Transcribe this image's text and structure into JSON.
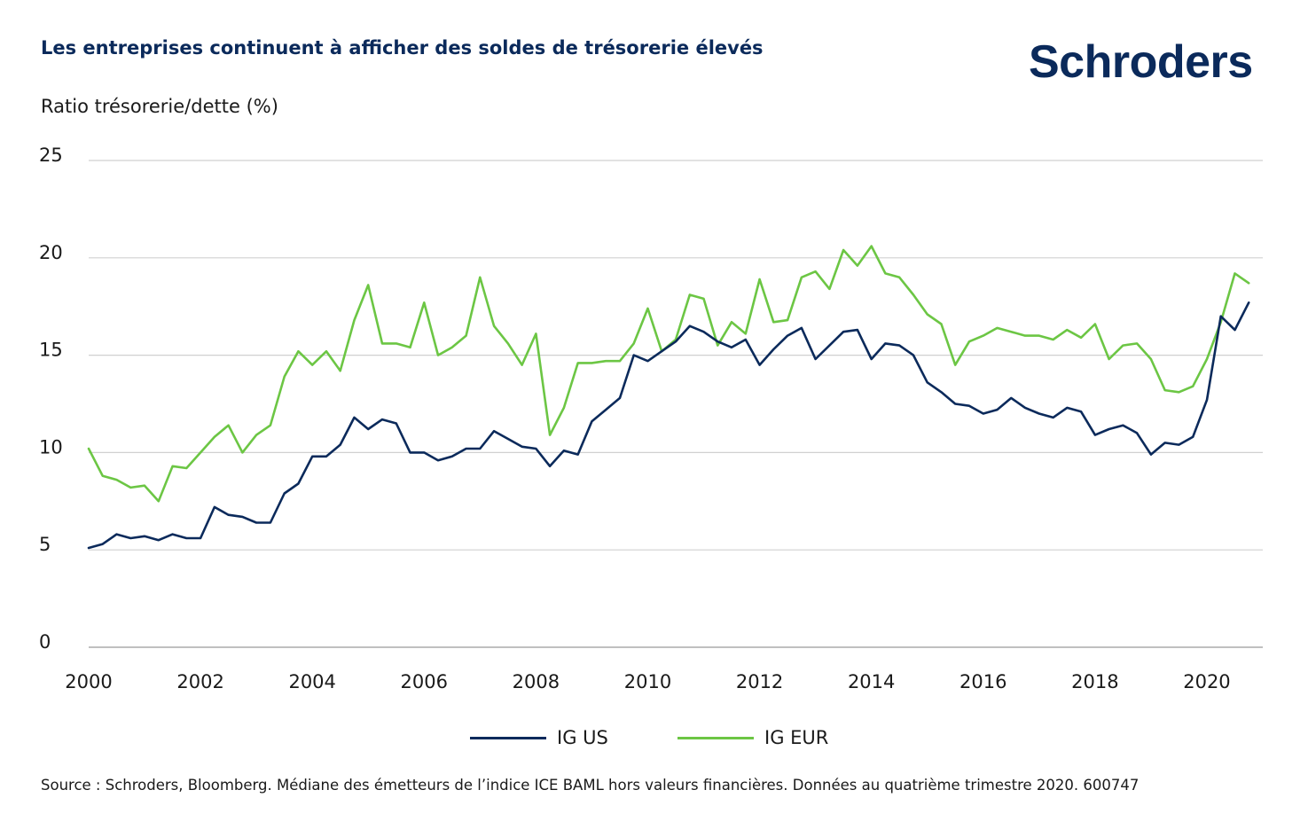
{
  "header": {
    "title": "Les entreprises continuent à afficher des soldes de trésorerie élevés",
    "logo_text": "Schroders"
  },
  "footer": {
    "source": "Source : Schroders, Bloomberg. Médiane des émetteurs de l’indice ICE BAML hors valeurs financières. Données au quatrième trimestre 2020. 600747"
  },
  "colors": {
    "ig_us": "#0b2a5b",
    "ig_eur": "#6cc644",
    "grid": "#d0d0d0",
    "title": "#0b2a5b"
  },
  "chart_data": {
    "type": "line",
    "title": "Les entreprises continuent à afficher des soldes de trésorerie élevés",
    "ylabel": "Ratio trésorerie/dette (%)",
    "xlabel": "",
    "xlim": [
      2000,
      2021
    ],
    "ylim": [
      0,
      25
    ],
    "x_ticks": [
      2000,
      2002,
      2004,
      2006,
      2008,
      2010,
      2012,
      2014,
      2016,
      2018,
      2020
    ],
    "y_ticks": [
      0,
      5,
      10,
      15,
      20,
      25
    ],
    "grid": "horizontal",
    "legend_position": "bottom-center",
    "series": [
      {
        "name": "IG US",
        "color": "#0b2a5b",
        "points": [
          [
            2000.0,
            5.1
          ],
          [
            2000.25,
            5.3
          ],
          [
            2000.5,
            5.8
          ],
          [
            2000.75,
            5.6
          ],
          [
            2001.0,
            5.7
          ],
          [
            2001.25,
            5.5
          ],
          [
            2001.5,
            5.8
          ],
          [
            2001.75,
            5.6
          ],
          [
            2002.0,
            5.6
          ],
          [
            2002.25,
            7.2
          ],
          [
            2002.5,
            6.8
          ],
          [
            2002.75,
            6.7
          ],
          [
            2003.0,
            6.4
          ],
          [
            2003.25,
            6.4
          ],
          [
            2003.5,
            7.9
          ],
          [
            2003.75,
            8.4
          ],
          [
            2004.0,
            9.8
          ],
          [
            2004.25,
            9.8
          ],
          [
            2004.5,
            10.4
          ],
          [
            2004.75,
            11.8
          ],
          [
            2005.0,
            11.2
          ],
          [
            2005.25,
            11.7
          ],
          [
            2005.5,
            11.5
          ],
          [
            2005.75,
            10.0
          ],
          [
            2006.0,
            10.0
          ],
          [
            2006.25,
            9.6
          ],
          [
            2006.5,
            9.8
          ],
          [
            2006.75,
            10.2
          ],
          [
            2007.0,
            10.2
          ],
          [
            2007.25,
            11.1
          ],
          [
            2007.5,
            10.7
          ],
          [
            2007.75,
            10.3
          ],
          [
            2008.0,
            10.2
          ],
          [
            2008.25,
            9.3
          ],
          [
            2008.5,
            10.1
          ],
          [
            2008.75,
            9.9
          ],
          [
            2009.0,
            11.6
          ],
          [
            2009.25,
            12.2
          ],
          [
            2009.5,
            12.8
          ],
          [
            2009.75,
            15.0
          ],
          [
            2010.0,
            14.7
          ],
          [
            2010.25,
            15.2
          ],
          [
            2010.5,
            15.7
          ],
          [
            2010.75,
            16.5
          ],
          [
            2011.0,
            16.2
          ],
          [
            2011.25,
            15.7
          ],
          [
            2011.5,
            15.4
          ],
          [
            2011.75,
            15.8
          ],
          [
            2012.0,
            14.5
          ],
          [
            2012.25,
            15.3
          ],
          [
            2012.5,
            16.0
          ],
          [
            2012.75,
            16.4
          ],
          [
            2013.0,
            14.8
          ],
          [
            2013.25,
            15.5
          ],
          [
            2013.5,
            16.2
          ],
          [
            2013.75,
            16.3
          ],
          [
            2014.0,
            14.8
          ],
          [
            2014.25,
            15.6
          ],
          [
            2014.5,
            15.5
          ],
          [
            2014.75,
            15.0
          ],
          [
            2015.0,
            13.6
          ],
          [
            2015.25,
            13.1
          ],
          [
            2015.5,
            12.5
          ],
          [
            2015.75,
            12.4
          ],
          [
            2016.0,
            12.0
          ],
          [
            2016.25,
            12.2
          ],
          [
            2016.5,
            12.8
          ],
          [
            2016.75,
            12.3
          ],
          [
            2017.0,
            12.0
          ],
          [
            2017.25,
            11.8
          ],
          [
            2017.5,
            12.3
          ],
          [
            2017.75,
            12.1
          ],
          [
            2018.0,
            10.9
          ],
          [
            2018.25,
            11.2
          ],
          [
            2018.5,
            11.4
          ],
          [
            2018.75,
            11.0
          ],
          [
            2019.0,
            9.9
          ],
          [
            2019.25,
            10.5
          ],
          [
            2019.5,
            10.4
          ],
          [
            2019.75,
            10.8
          ],
          [
            2020.0,
            12.7
          ],
          [
            2020.25,
            17.0
          ],
          [
            2020.5,
            16.3
          ],
          [
            2020.75,
            17.7
          ]
        ]
      },
      {
        "name": "IG EUR",
        "color": "#6cc644",
        "points": [
          [
            2000.0,
            10.2
          ],
          [
            2000.25,
            8.8
          ],
          [
            2000.5,
            8.6
          ],
          [
            2000.75,
            8.2
          ],
          [
            2001.0,
            8.3
          ],
          [
            2001.25,
            7.5
          ],
          [
            2001.5,
            9.3
          ],
          [
            2001.75,
            9.2
          ],
          [
            2002.0,
            10.0
          ],
          [
            2002.25,
            10.8
          ],
          [
            2002.5,
            11.4
          ],
          [
            2002.75,
            10.0
          ],
          [
            2003.0,
            10.9
          ],
          [
            2003.25,
            11.4
          ],
          [
            2003.5,
            13.9
          ],
          [
            2003.75,
            15.2
          ],
          [
            2004.0,
            14.5
          ],
          [
            2004.25,
            15.2
          ],
          [
            2004.5,
            14.2
          ],
          [
            2004.75,
            16.8
          ],
          [
            2005.0,
            18.6
          ],
          [
            2005.25,
            15.6
          ],
          [
            2005.5,
            15.6
          ],
          [
            2005.75,
            15.4
          ],
          [
            2006.0,
            17.7
          ],
          [
            2006.25,
            15.0
          ],
          [
            2006.5,
            15.4
          ],
          [
            2006.75,
            16.0
          ],
          [
            2007.0,
            19.0
          ],
          [
            2007.25,
            16.5
          ],
          [
            2007.5,
            15.6
          ],
          [
            2007.75,
            14.5
          ],
          [
            2008.0,
            16.1
          ],
          [
            2008.25,
            10.9
          ],
          [
            2008.5,
            12.3
          ],
          [
            2008.75,
            14.6
          ],
          [
            2009.0,
            14.6
          ],
          [
            2009.25,
            14.7
          ],
          [
            2009.5,
            14.7
          ],
          [
            2009.75,
            15.6
          ],
          [
            2010.0,
            17.4
          ],
          [
            2010.25,
            15.2
          ],
          [
            2010.5,
            15.8
          ],
          [
            2010.75,
            18.1
          ],
          [
            2011.0,
            17.9
          ],
          [
            2011.25,
            15.5
          ],
          [
            2011.5,
            16.7
          ],
          [
            2011.75,
            16.1
          ],
          [
            2012.0,
            18.9
          ],
          [
            2012.25,
            16.7
          ],
          [
            2012.5,
            16.8
          ],
          [
            2012.75,
            19.0
          ],
          [
            2013.0,
            19.3
          ],
          [
            2013.25,
            18.4
          ],
          [
            2013.5,
            20.4
          ],
          [
            2013.75,
            19.6
          ],
          [
            2014.0,
            20.6
          ],
          [
            2014.25,
            19.2
          ],
          [
            2014.5,
            19.0
          ],
          [
            2014.75,
            18.1
          ],
          [
            2015.0,
            17.1
          ],
          [
            2015.25,
            16.6
          ],
          [
            2015.5,
            14.5
          ],
          [
            2015.75,
            15.7
          ],
          [
            2016.0,
            16.0
          ],
          [
            2016.25,
            16.4
          ],
          [
            2016.5,
            16.2
          ],
          [
            2016.75,
            16.0
          ],
          [
            2017.0,
            16.0
          ],
          [
            2017.25,
            15.8
          ],
          [
            2017.5,
            16.3
          ],
          [
            2017.75,
            15.9
          ],
          [
            2018.0,
            16.6
          ],
          [
            2018.25,
            14.8
          ],
          [
            2018.5,
            15.5
          ],
          [
            2018.75,
            15.6
          ],
          [
            2019.0,
            14.8
          ],
          [
            2019.25,
            13.2
          ],
          [
            2019.5,
            13.1
          ],
          [
            2019.75,
            13.4
          ],
          [
            2020.0,
            14.8
          ],
          [
            2020.25,
            16.7
          ],
          [
            2020.5,
            19.2
          ],
          [
            2020.75,
            18.7
          ]
        ]
      }
    ]
  }
}
